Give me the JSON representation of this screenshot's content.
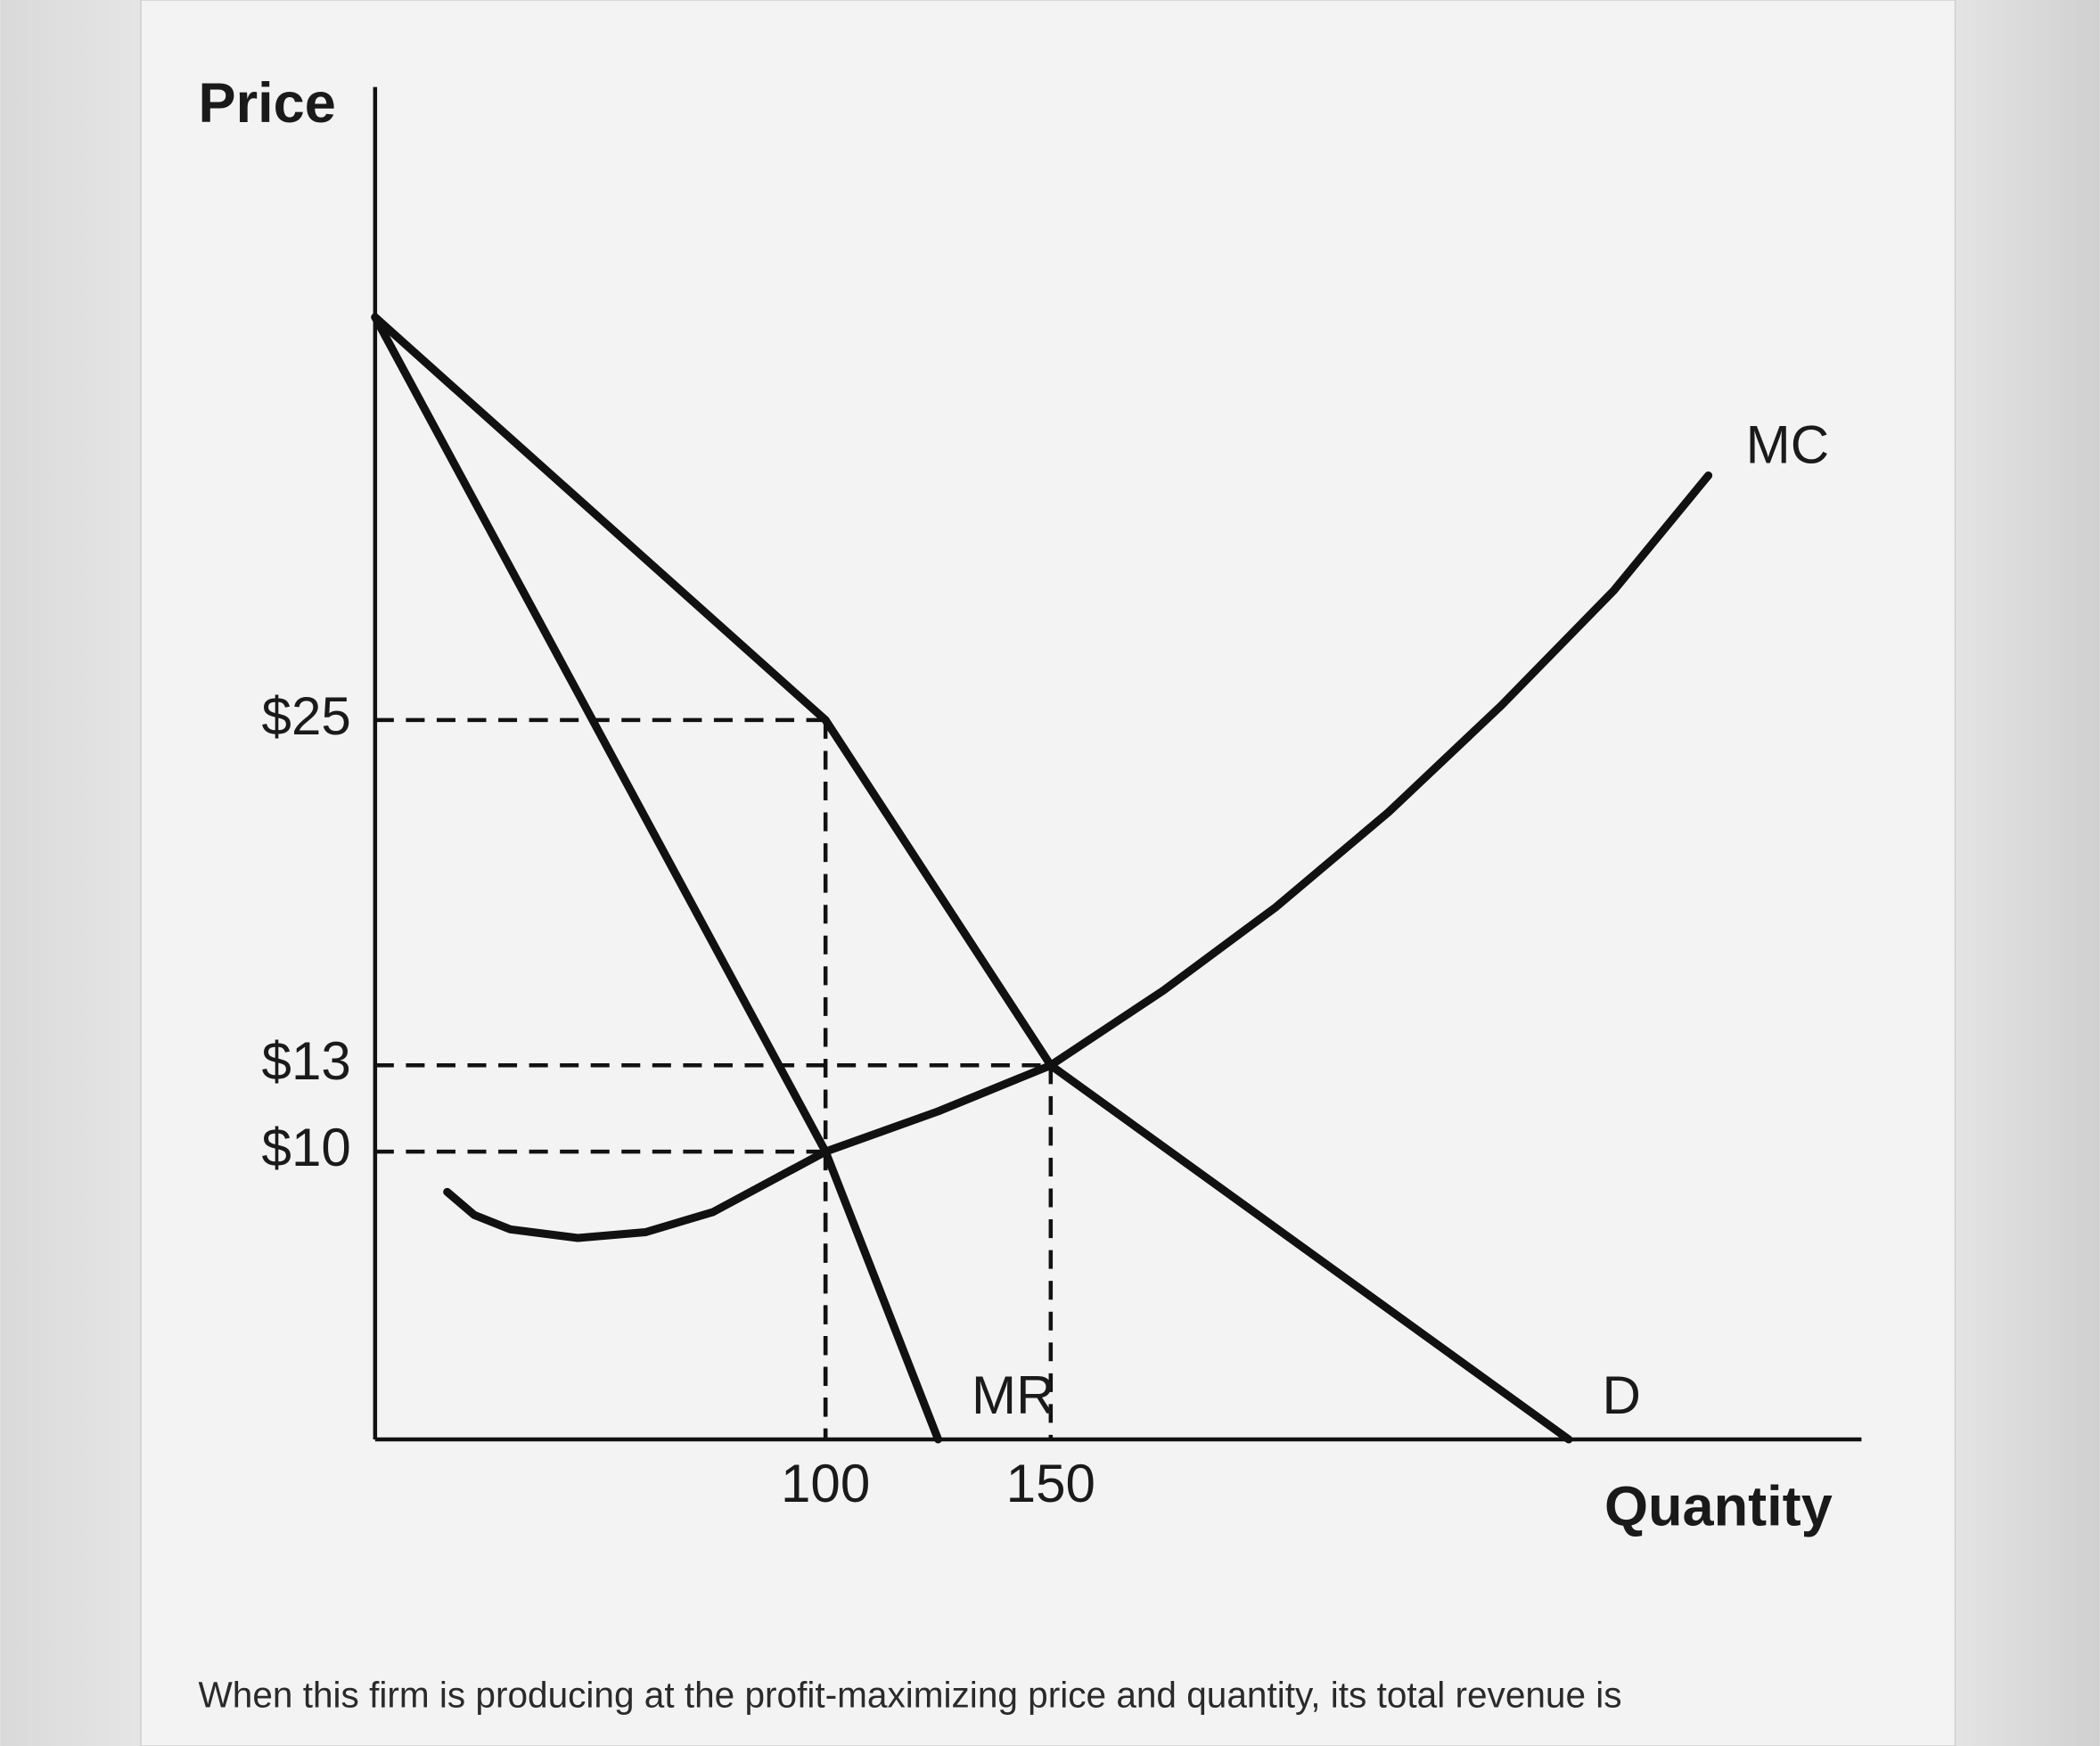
{
  "chart_data": {
    "type": "line",
    "ylabel": "Price",
    "xlabel": "Quantity",
    "xlim": [
      0,
      330
    ],
    "ylim": [
      0,
      47
    ],
    "xticks": [
      100,
      150
    ],
    "yticks": [
      {
        "value": 10,
        "label": "$10"
      },
      {
        "value": 13,
        "label": "$13"
      },
      {
        "value": 25,
        "label": "$25"
      }
    ],
    "series": [
      {
        "name": "D",
        "color": "#111111",
        "x": [
          0,
          100,
          150,
          265
        ],
        "values": [
          39,
          25,
          13,
          0
        ]
      },
      {
        "name": "MR",
        "color": "#111111",
        "x": [
          0,
          100,
          125
        ],
        "values": [
          39,
          10,
          0
        ]
      },
      {
        "name": "MC",
        "color": "#111111",
        "x": [
          16,
          22,
          30,
          45,
          60,
          75,
          100,
          125,
          150,
          175,
          200,
          225,
          250,
          275,
          296
        ],
        "values": [
          8.6,
          7.8,
          7.3,
          7,
          7.2,
          7.9,
          10,
          11.4,
          13,
          15.6,
          18.5,
          21.8,
          25.5,
          29.5,
          33.5
        ]
      }
    ],
    "points": [
      {
        "x": 100,
        "y": 25
      },
      {
        "x": 150,
        "y": 13
      },
      {
        "x": 100,
        "y": 10
      }
    ]
  },
  "caption": "When this firm is producing at the profit-maximizing price and quantity, its total revenue is"
}
